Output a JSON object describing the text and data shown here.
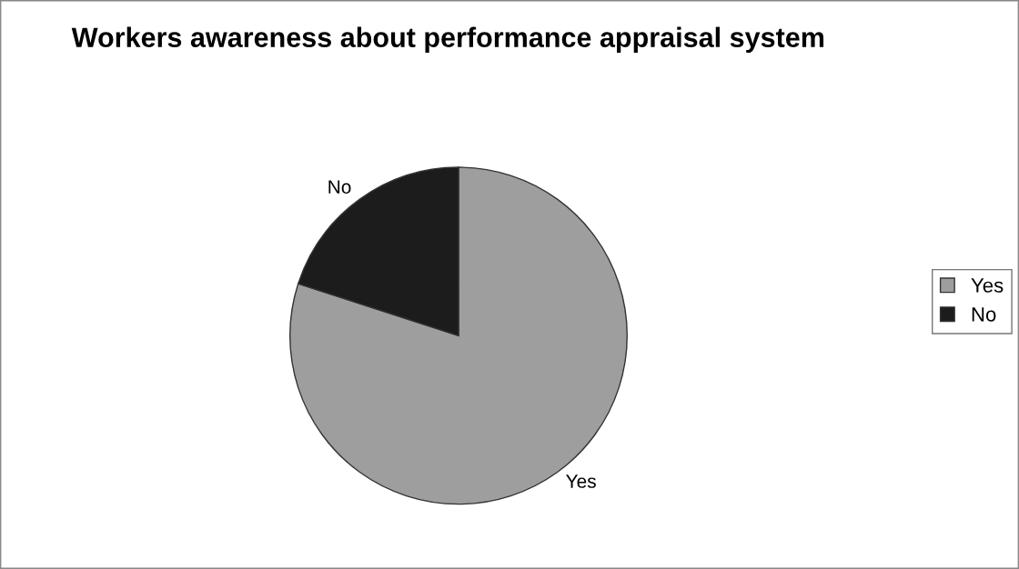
{
  "chart_data": {
    "type": "pie",
    "title": "Workers awareness about performance appraisal system",
    "categories": [
      "Yes",
      "No"
    ],
    "values": [
      80,
      20
    ],
    "colors": [
      "#9e9e9e",
      "#1c1c1c"
    ],
    "legend": "right"
  }
}
